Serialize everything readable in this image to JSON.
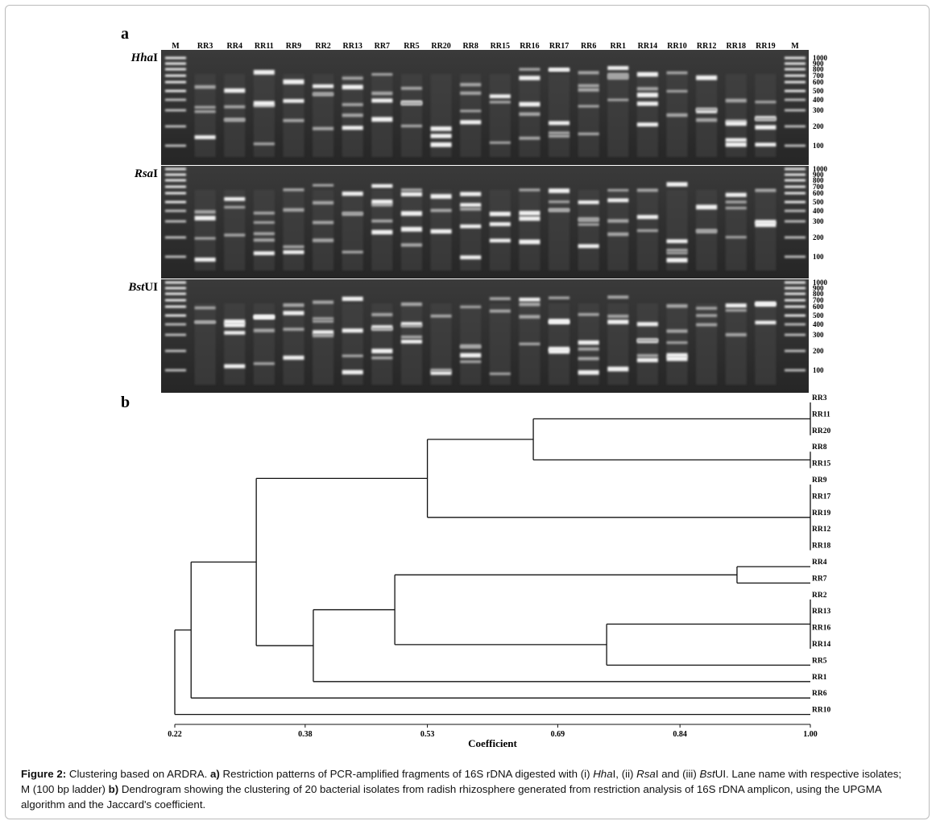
{
  "figure": {
    "panel_a": {
      "label": "a",
      "lanes": [
        "M",
        "RR3",
        "RR4",
        "RR11",
        "RR9",
        "RR2",
        "RR13",
        "RR7",
        "RR5",
        "RR20",
        "RR8",
        "RR15",
        "RR16",
        "RR17",
        "RR6",
        "RR1",
        "RR14",
        "RR10",
        "RR12",
        "RR18",
        "RR19",
        "M"
      ],
      "ladder": [
        1000,
        900,
        800,
        700,
        600,
        500,
        400,
        300,
        200,
        100
      ],
      "enzymes": [
        {
          "italic": "Hha",
          "roman": "I"
        },
        {
          "italic": "Rsa",
          "roman": "I"
        },
        {
          "italic": "Bst",
          "roman": "UI"
        }
      ]
    },
    "panel_b": {
      "label": "b",
      "type": "dendrogram",
      "xlim": [
        0.22,
        1
      ],
      "xticks": [
        0.22,
        0.38,
        0.53,
        0.69,
        0.84,
        {
          "value": 1,
          "label": "1.00"
        }
      ],
      "xlabel": "Coefficient",
      "tree": {
        "height": 0.22,
        "children": [
          {
            "height": 0.24,
            "children": [
              {
                "height": 0.32,
                "children": [
                  {
                    "height": 0.53,
                    "children": [
                      {
                        "height": 0.66,
                        "children": [
                          {
                            "height": 1,
                            "children": [
                              {
                                "label": "RR3"
                              },
                              {
                                "label": "RR11"
                              },
                              {
                                "label": "RR20"
                              }
                            ]
                          },
                          {
                            "height": 1,
                            "children": [
                              {
                                "label": "RR8"
                              },
                              {
                                "label": "RR15"
                              }
                            ]
                          }
                        ]
                      },
                      {
                        "height": 1,
                        "children": [
                          {
                            "label": "RR9"
                          },
                          {
                            "label": "RR17"
                          },
                          {
                            "label": "RR19"
                          },
                          {
                            "label": "RR12"
                          },
                          {
                            "label": "RR18"
                          }
                        ]
                      }
                    ]
                  },
                  {
                    "height": 0.39,
                    "children": [
                      {
                        "height": 0.49,
                        "children": [
                          {
                            "height": 0.91,
                            "children": [
                              {
                                "label": "RR4"
                              },
                              {
                                "label": "RR7"
                              }
                            ]
                          },
                          {
                            "height": 0.75,
                            "children": [
                              {
                                "height": 1,
                                "children": [
                                  {
                                    "label": "RR2"
                                  },
                                  {
                                    "label": "RR13"
                                  },
                                  {
                                    "label": "RR16"
                                  },
                                  {
                                    "label": "RR14"
                                  }
                                ]
                              },
                              {
                                "label": "RR5"
                              }
                            ]
                          }
                        ]
                      },
                      {
                        "label": "RR1"
                      }
                    ]
                  }
                ]
              },
              {
                "label": "RR6"
              }
            ]
          },
          {
            "label": "RR10"
          }
        ]
      }
    }
  },
  "caption": [
    {
      "text": "Figure 2:",
      "style": "bold"
    },
    {
      "text": " Clustering based on ARDRA. "
    },
    {
      "text": "a)",
      "style": "bold"
    },
    {
      "text": " Restriction patterns of PCR-amplified fragments of 16S rDNA digested with (i) "
    },
    {
      "text": "Hha",
      "style": "italic"
    },
    {
      "text": "I, (ii) "
    },
    {
      "text": "Rsa",
      "style": "italic"
    },
    {
      "text": "I and (iii) "
    },
    {
      "text": "Bst",
      "style": "italic"
    },
    {
      "text": "UI. Lane name with respective isolates; M (100 bp ladder) "
    },
    {
      "text": "b)",
      "style": "bold"
    },
    {
      "text": " Dendrogram showing the clustering of 20 bacterial isolates from radish rhizosphere generated from restriction analysis of 16S rDNA amplicon, using the UPGMA algorithm and the Jaccard's coefficient."
    }
  ]
}
